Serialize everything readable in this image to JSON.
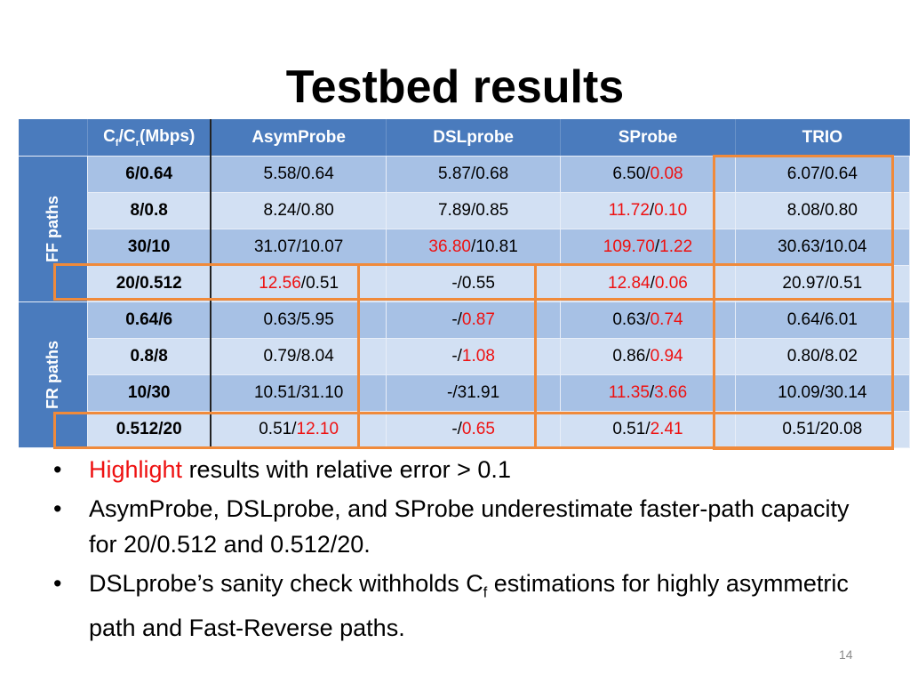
{
  "slide": {
    "title": "Testbed results",
    "page_number": "14"
  },
  "table": {
    "header": {
      "cap_main": "C",
      "cap_sub_f": "f",
      "cap_sep": "/C",
      "cap_sub_r": "r",
      "cap_unit": "(Mbps)",
      "col1": "AsymProbe",
      "col2": "DSLprobe",
      "col3": "SProbe",
      "col4": "TRIO"
    },
    "groups": {
      "ff": "FF paths",
      "fr": "FR paths"
    },
    "rows": [
      {
        "label": "6/0.64",
        "asym": {
          "a": "5.58",
          "b": "0.64"
        },
        "dsl": {
          "a": "5.87",
          "b": "0.68"
        },
        "sprobe": {
          "a": "6.50",
          "b": "0.08"
        },
        "trio": {
          "a": "6.07",
          "b": "0.64"
        }
      },
      {
        "label": "8/0.8",
        "asym": {
          "a": "8.24",
          "b": "0.80"
        },
        "dsl": {
          "a": "7.89",
          "b": "0.85"
        },
        "sprobe": {
          "a": "11.72",
          "b": "0.10"
        },
        "trio": {
          "a": "8.08",
          "b": "0.80"
        }
      },
      {
        "label": "30/10",
        "asym": {
          "a": "31.07",
          "b": "10.07"
        },
        "dsl": {
          "a": "36.80",
          "b": "10.81"
        },
        "sprobe": {
          "a": "109.70",
          "b": "1.22"
        },
        "trio": {
          "a": "30.63",
          "b": "10.04"
        }
      },
      {
        "label": "20/0.512",
        "asym": {
          "a": "12.56",
          "b": "0.51"
        },
        "dsl": {
          "a": "-",
          "b": "0.55"
        },
        "sprobe": {
          "a": "12.84",
          "b": "0.06"
        },
        "trio": {
          "a": "20.97",
          "b": "0.51"
        }
      },
      {
        "label": "0.64/6",
        "asym": {
          "a": "0.63",
          "b": "5.95"
        },
        "dsl": {
          "a": "-",
          "b": "0.87"
        },
        "sprobe": {
          "a": "0.63",
          "b": "0.74"
        },
        "trio": {
          "a": "0.64",
          "b": "6.01"
        }
      },
      {
        "label": "0.8/8",
        "asym": {
          "a": "0.79",
          "b": "8.04"
        },
        "dsl": {
          "a": "-",
          "b": "1.08"
        },
        "sprobe": {
          "a": "0.86",
          "b": "0.94"
        },
        "trio": {
          "a": "0.80",
          "b": "8.02"
        }
      },
      {
        "label": "10/30",
        "asym": {
          "a": "10.51",
          "b": "31.10"
        },
        "dsl": {
          "a": "-",
          "b": "31.91"
        },
        "sprobe": {
          "a": "11.35",
          "b": "3.66"
        },
        "trio": {
          "a": "10.09",
          "b": "30.14"
        }
      },
      {
        "label": "0.512/20",
        "asym": {
          "a": "0.51",
          "b": "12.10"
        },
        "dsl": {
          "a": "-",
          "b": "0.65"
        },
        "sprobe": {
          "a": "0.51",
          "b": "2.41"
        },
        "trio": {
          "a": "0.51",
          "b": "20.08"
        }
      }
    ]
  },
  "bullets": {
    "b1_highlight": "Highlight",
    "b1_rest": " results with relative error > 0.1",
    "b2": "AsymProbe, DSLprobe, and SProbe underestimate faster-path capacity for 20/0.512 and 0.512/20.",
    "b3_pre": "DSLprobe’s sanity check withholds C",
    "b3_sub": "f",
    "b3_post": " estimations for highly asymmetric path and Fast-Reverse paths."
  },
  "colors": {
    "header_blue": "#4a7bbd",
    "row_dark": "#a7c1e5",
    "row_light": "#d2e0f3",
    "highlight_red": "#ee1111",
    "box_orange": "#f08a3a"
  }
}
